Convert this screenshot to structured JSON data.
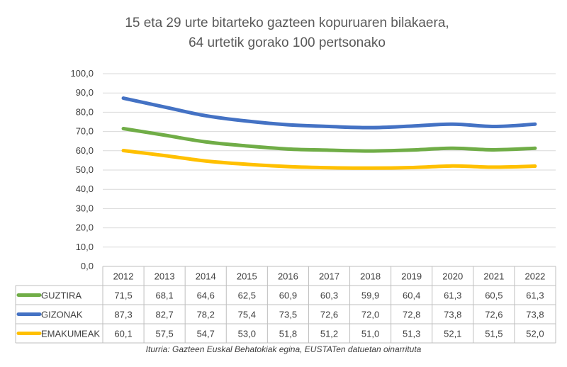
{
  "chart_data": {
    "type": "line",
    "title": "15 eta 29 urte bitarteko gazteen kopuruaren bilakaera,",
    "subtitle": "64 urtetik gorako 100 pertsonako",
    "categories": [
      "2012",
      "2013",
      "2014",
      "2015",
      "2016",
      "2017",
      "2018",
      "2019",
      "2020",
      "2021",
      "2022"
    ],
    "ylim": [
      0,
      100
    ],
    "yticks": [
      "0,0",
      "10,0",
      "20,0",
      "30,0",
      "40,0",
      "50,0",
      "60,0",
      "70,0",
      "80,0",
      "90,0",
      "100,0"
    ],
    "grid": true,
    "legend": "data-table",
    "series": [
      {
        "name": "GUZTIRA",
        "color": "#70ad47",
        "values": [
          71.5,
          68.1,
          64.6,
          62.5,
          60.9,
          60.3,
          59.9,
          60.4,
          61.3,
          60.5,
          61.3
        ],
        "labels": [
          "71,5",
          "68,1",
          "64,6",
          "62,5",
          "60,9",
          "60,3",
          "59,9",
          "60,4",
          "61,3",
          "60,5",
          "61,3"
        ]
      },
      {
        "name": "GIZONAK",
        "color": "#4472c4",
        "values": [
          87.3,
          82.7,
          78.2,
          75.4,
          73.5,
          72.6,
          72.0,
          72.8,
          73.8,
          72.6,
          73.8
        ],
        "labels": [
          "87,3",
          "82,7",
          "78,2",
          "75,4",
          "73,5",
          "72,6",
          "72,0",
          "72,8",
          "73,8",
          "72,6",
          "73,8"
        ]
      },
      {
        "name": "EMAKUMEAK",
        "color": "#ffc000",
        "values": [
          60.1,
          57.5,
          54.7,
          53.0,
          51.8,
          51.2,
          51.0,
          51.3,
          52.1,
          51.5,
          52.0
        ],
        "labels": [
          "60,1",
          "57,5",
          "54,7",
          "53,0",
          "51,8",
          "51,2",
          "51,0",
          "51,3",
          "52,1",
          "51,5",
          "52,0"
        ]
      }
    ],
    "source": "Iturria: Gazteen Euskal Behatokiak egina, EUSTATen datuetan oinarrituta"
  }
}
